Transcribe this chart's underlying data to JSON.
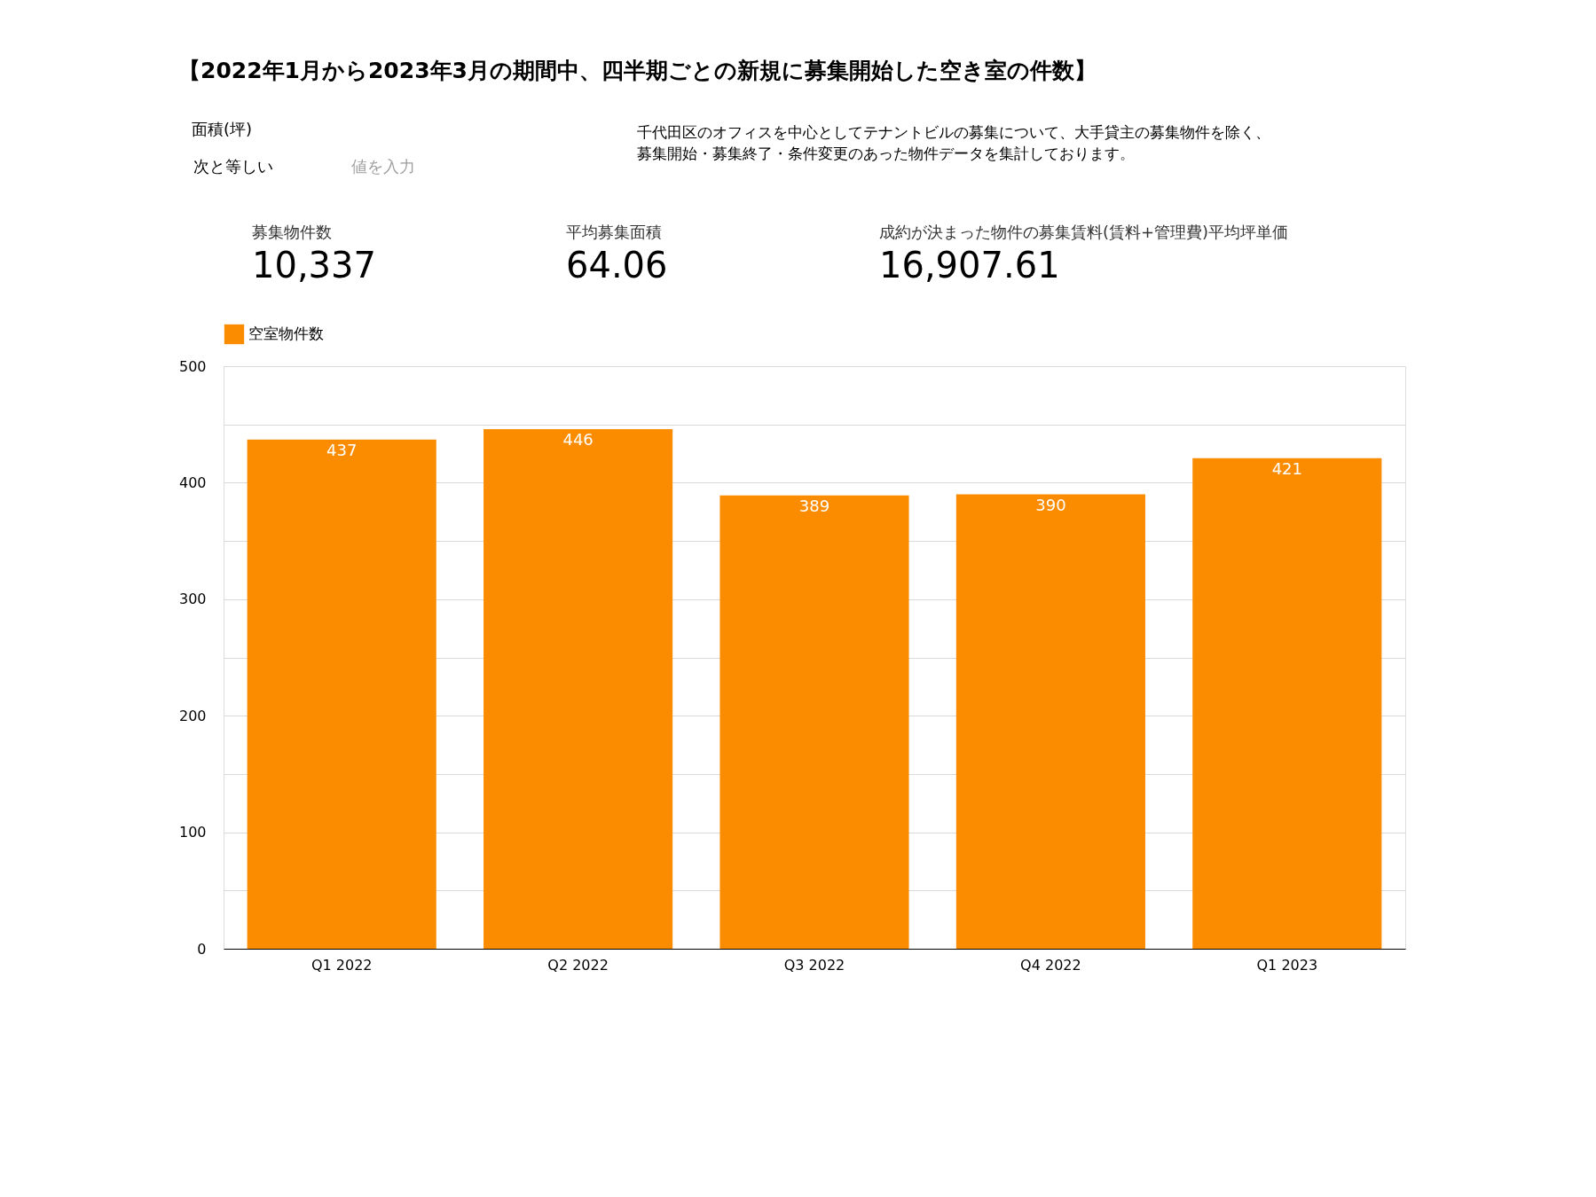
{
  "chart_data": {
    "type": "bar",
    "title": "【2022年1月から2023年3月の期間中、四半期ごとの新規に募集開始した空き室の件数】",
    "categories": [
      "Q1 2022",
      "Q2 2022",
      "Q3 2022",
      "Q4 2022",
      "Q1 2023"
    ],
    "series": [
      {
        "name": "空室物件数",
        "color": "#fb8c00",
        "values": [
          437,
          446,
          389,
          390,
          421
        ]
      }
    ],
    "ylim": [
      0,
      500
    ],
    "yticks": [
      0,
      {
        "value": 50,
        "label": null
      },
      100,
      {
        "value": 150,
        "label": null
      },
      200,
      {
        "value": 250,
        "label": null
      },
      300,
      {
        "value": 350,
        "label": null
      },
      400,
      {
        "value": 450,
        "label": null
      },
      500
    ],
    "grid": "y",
    "legend": "top left",
    "data_labels": true,
    "annotations": [
      "面積(坪)",
      "次と等しい",
      "値を入力",
      "千代田区のオフィスを中心としてテナントビルの募集について、大手貸主の募集物件を除く、",
      "募集開始・募集終了・条件変更のあった物件データを集計しております。",
      "募集物件数",
      "10,337",
      "平均募集面積",
      "64.06",
      "成約が決まった物件の募集賃料(賃料+管理費)平均坪単価",
      "16,907.61"
    ]
  }
}
